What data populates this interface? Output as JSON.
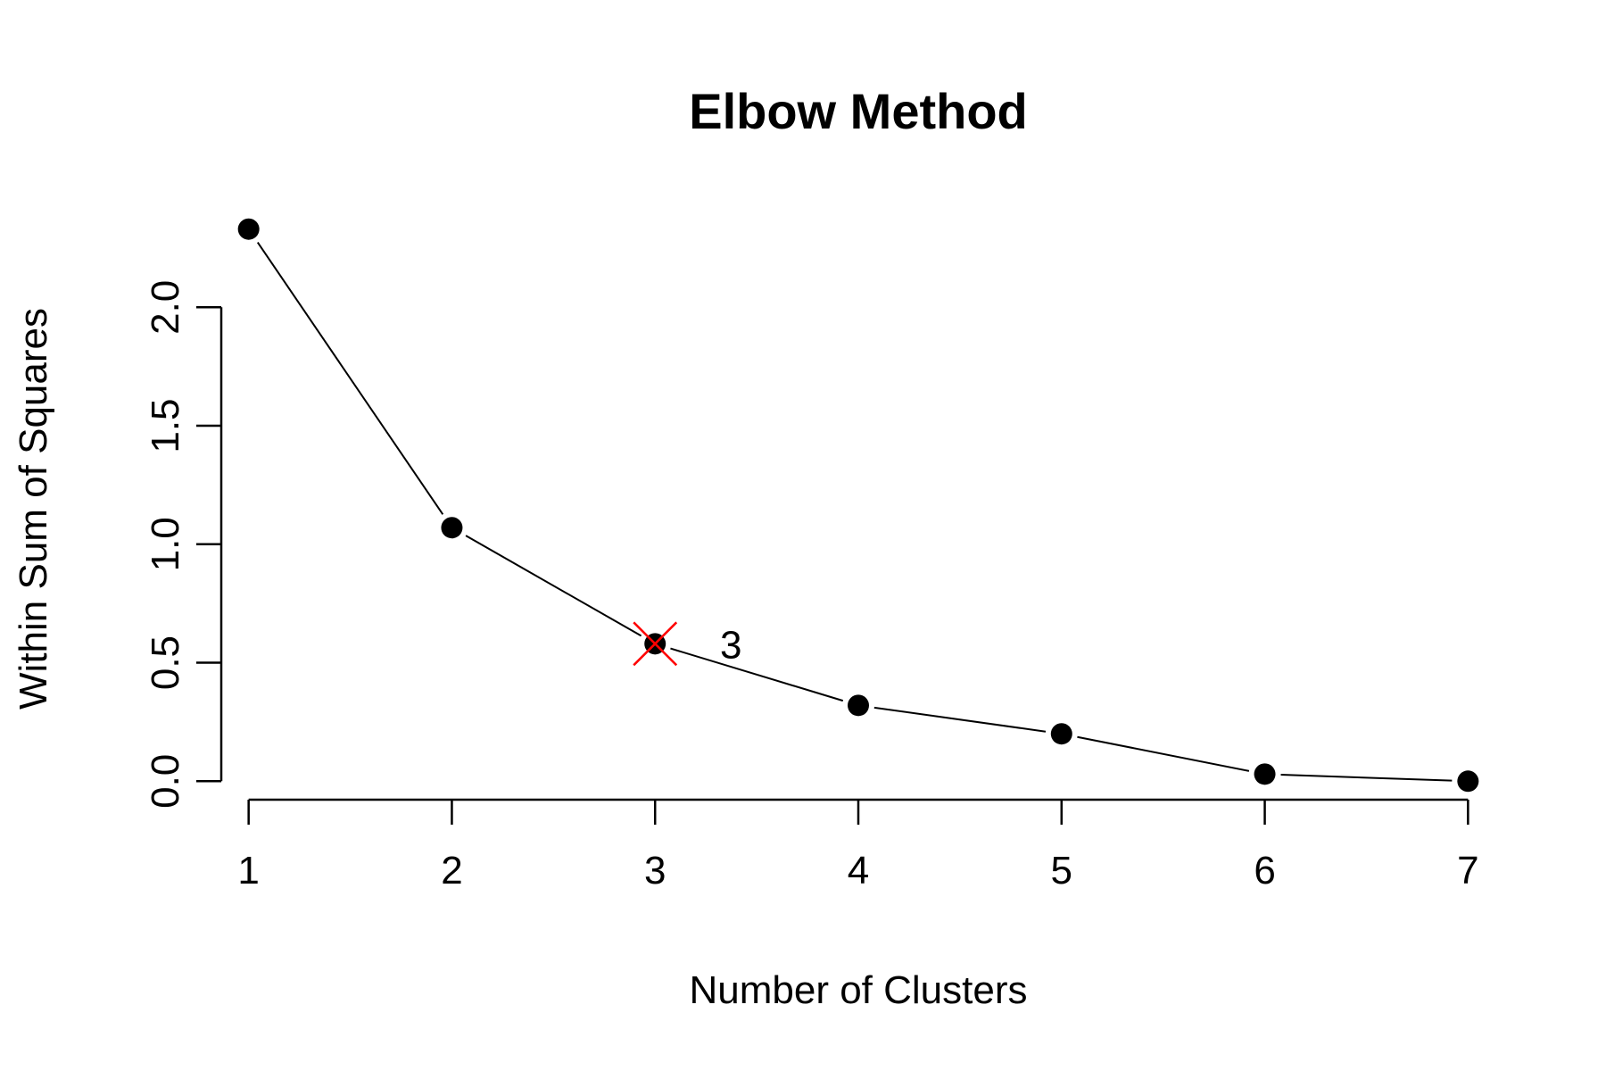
{
  "chart_data": {
    "type": "line",
    "title": "Elbow Method",
    "xlabel": "Number of Clusters",
    "ylabel": "Within Sum of Squares",
    "x": [
      1,
      2,
      3,
      4,
      5,
      6,
      7
    ],
    "series": [
      {
        "values": [
          2.33,
          1.07,
          0.58,
          0.32,
          0.2,
          0.03,
          0.0
        ]
      }
    ],
    "xlim": [
      0.76,
      7.24
    ],
    "ylim": [
      -0.093,
      2.423
    ],
    "xticks": [
      "1",
      "2",
      "3",
      "4",
      "5",
      "6",
      "7"
    ],
    "yticks": [
      "0.0",
      "0.5",
      "1.0",
      "1.5",
      "2.0"
    ],
    "grid": false,
    "markers": "filled-circle",
    "highlight": {
      "x": 3,
      "y": 0.58,
      "label": "3",
      "marker": "x",
      "color": "#ff0000"
    },
    "colors": {
      "line": "#000000",
      "points": "#000000",
      "highlight": "#ff0000"
    }
  }
}
